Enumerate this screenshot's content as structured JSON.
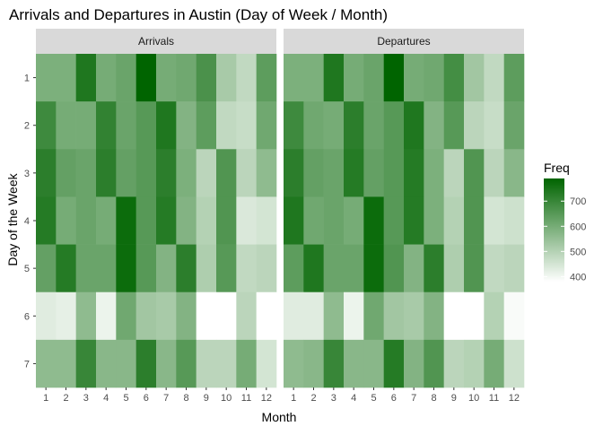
{
  "chart_data": {
    "type": "heatmap",
    "title": "Arrivals and Departures in Austin (Day of Week / Month)",
    "xlabel": "Month",
    "ylabel": "Day of the Week",
    "x": [
      1,
      2,
      3,
      4,
      5,
      6,
      7,
      8,
      9,
      10,
      11,
      12
    ],
    "y": [
      1,
      2,
      3,
      4,
      5,
      6,
      7
    ],
    "legend": {
      "title": "Freq",
      "ticks": [
        400,
        500,
        600,
        700
      ],
      "range": [
        380,
        790
      ],
      "low_color": "#ffffff",
      "high_color": "#006400",
      "placement": "right"
    },
    "panels": [
      {
        "name": "Arrivals",
        "z": [
          [
            590,
            590,
            740,
            600,
            620,
            790,
            600,
            610,
            670,
            520,
            480,
            640
          ],
          [
            690,
            600,
            600,
            710,
            620,
            650,
            740,
            580,
            640,
            480,
            470,
            610
          ],
          [
            720,
            630,
            620,
            720,
            630,
            650,
            720,
            590,
            490,
            660,
            490,
            560
          ],
          [
            730,
            600,
            620,
            600,
            770,
            650,
            730,
            580,
            500,
            660,
            440,
            450
          ],
          [
            630,
            730,
            620,
            620,
            770,
            650,
            580,
            720,
            510,
            650,
            480,
            490
          ],
          [
            430,
            420,
            560,
            410,
            610,
            530,
            520,
            580,
            380,
            380,
            490,
            380
          ],
          [
            560,
            560,
            700,
            570,
            570,
            720,
            570,
            650,
            490,
            490,
            600,
            450
          ]
        ]
      },
      {
        "name": "Departures",
        "z": [
          [
            590,
            590,
            740,
            600,
            620,
            790,
            600,
            610,
            680,
            530,
            480,
            640
          ],
          [
            690,
            610,
            600,
            720,
            620,
            650,
            740,
            580,
            650,
            490,
            470,
            620
          ],
          [
            720,
            630,
            620,
            730,
            630,
            650,
            730,
            590,
            490,
            660,
            490,
            570
          ],
          [
            740,
            610,
            620,
            600,
            770,
            650,
            730,
            590,
            500,
            660,
            450,
            460
          ],
          [
            640,
            740,
            620,
            620,
            770,
            660,
            580,
            720,
            510,
            660,
            480,
            490
          ],
          [
            430,
            430,
            560,
            410,
            610,
            530,
            520,
            580,
            380,
            380,
            500,
            390
          ],
          [
            560,
            570,
            700,
            570,
            570,
            730,
            580,
            660,
            490,
            500,
            600,
            460
          ]
        ]
      }
    ]
  }
}
